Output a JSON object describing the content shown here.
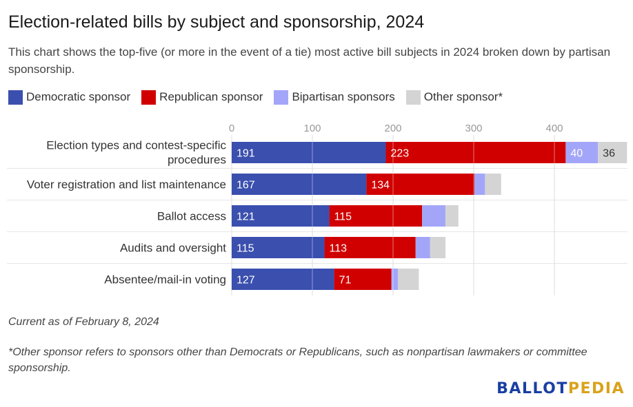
{
  "title": "Election-related bills by subject and sponsorship, 2024",
  "subtitle": "This chart shows the top-five (or more in the event of a tie) most active bill subjects in 2024 broken down by partisan sponsorship.",
  "legend": [
    {
      "label": "Democratic sponsor",
      "color": "#3a4fae"
    },
    {
      "label": "Republican sponsor",
      "color": "#d10000"
    },
    {
      "label": "Bipartisan sponsors",
      "color": "#a3a6f8"
    },
    {
      "label": "Other sponsor*",
      "color": "#d4d4d4"
    }
  ],
  "chart_data": {
    "type": "bar",
    "orientation": "horizontal",
    "stacked": true,
    "categories": [
      "Election types and contest-specific procedures",
      "Voter registration and list maintenance",
      "Ballot access",
      "Audits and oversight",
      "Absentee/mail-in voting"
    ],
    "series": [
      {
        "name": "Democratic sponsor",
        "values": [
          191,
          167,
          121,
          115,
          127
        ],
        "labels": [
          "191",
          "167",
          "121",
          "115",
          "127"
        ],
        "color": "#3a4fae"
      },
      {
        "name": "Republican sponsor",
        "values": [
          223,
          134,
          115,
          113,
          71
        ],
        "labels": [
          "223",
          "134",
          "115",
          "113",
          "71"
        ],
        "color": "#d10000"
      },
      {
        "name": "Bipartisan sponsors",
        "values": [
          40,
          13,
          29,
          18,
          8
        ],
        "labels": [
          "40",
          "",
          "",
          "",
          ""
        ],
        "color": "#a3a6f8"
      },
      {
        "name": "Other sponsor*",
        "values": [
          36,
          20,
          16,
          19,
          26
        ],
        "labels": [
          "36",
          "",
          "",
          "",
          ""
        ],
        "color": "#d4d4d4"
      }
    ],
    "x_ticks": [
      0,
      100,
      200,
      300,
      400
    ],
    "xlim": [
      0,
      490
    ],
    "axis_position": "top",
    "grid": true
  },
  "notes": {
    "current": "Current as of February 8, 2024",
    "footnote": "*Other sponsor refers to sponsors other than Democrats or Republicans, such as nonpartisan lawmakers or committee sponsorship."
  },
  "brand": {
    "part1": "BALLOT",
    "part2": "PEDIA"
  }
}
